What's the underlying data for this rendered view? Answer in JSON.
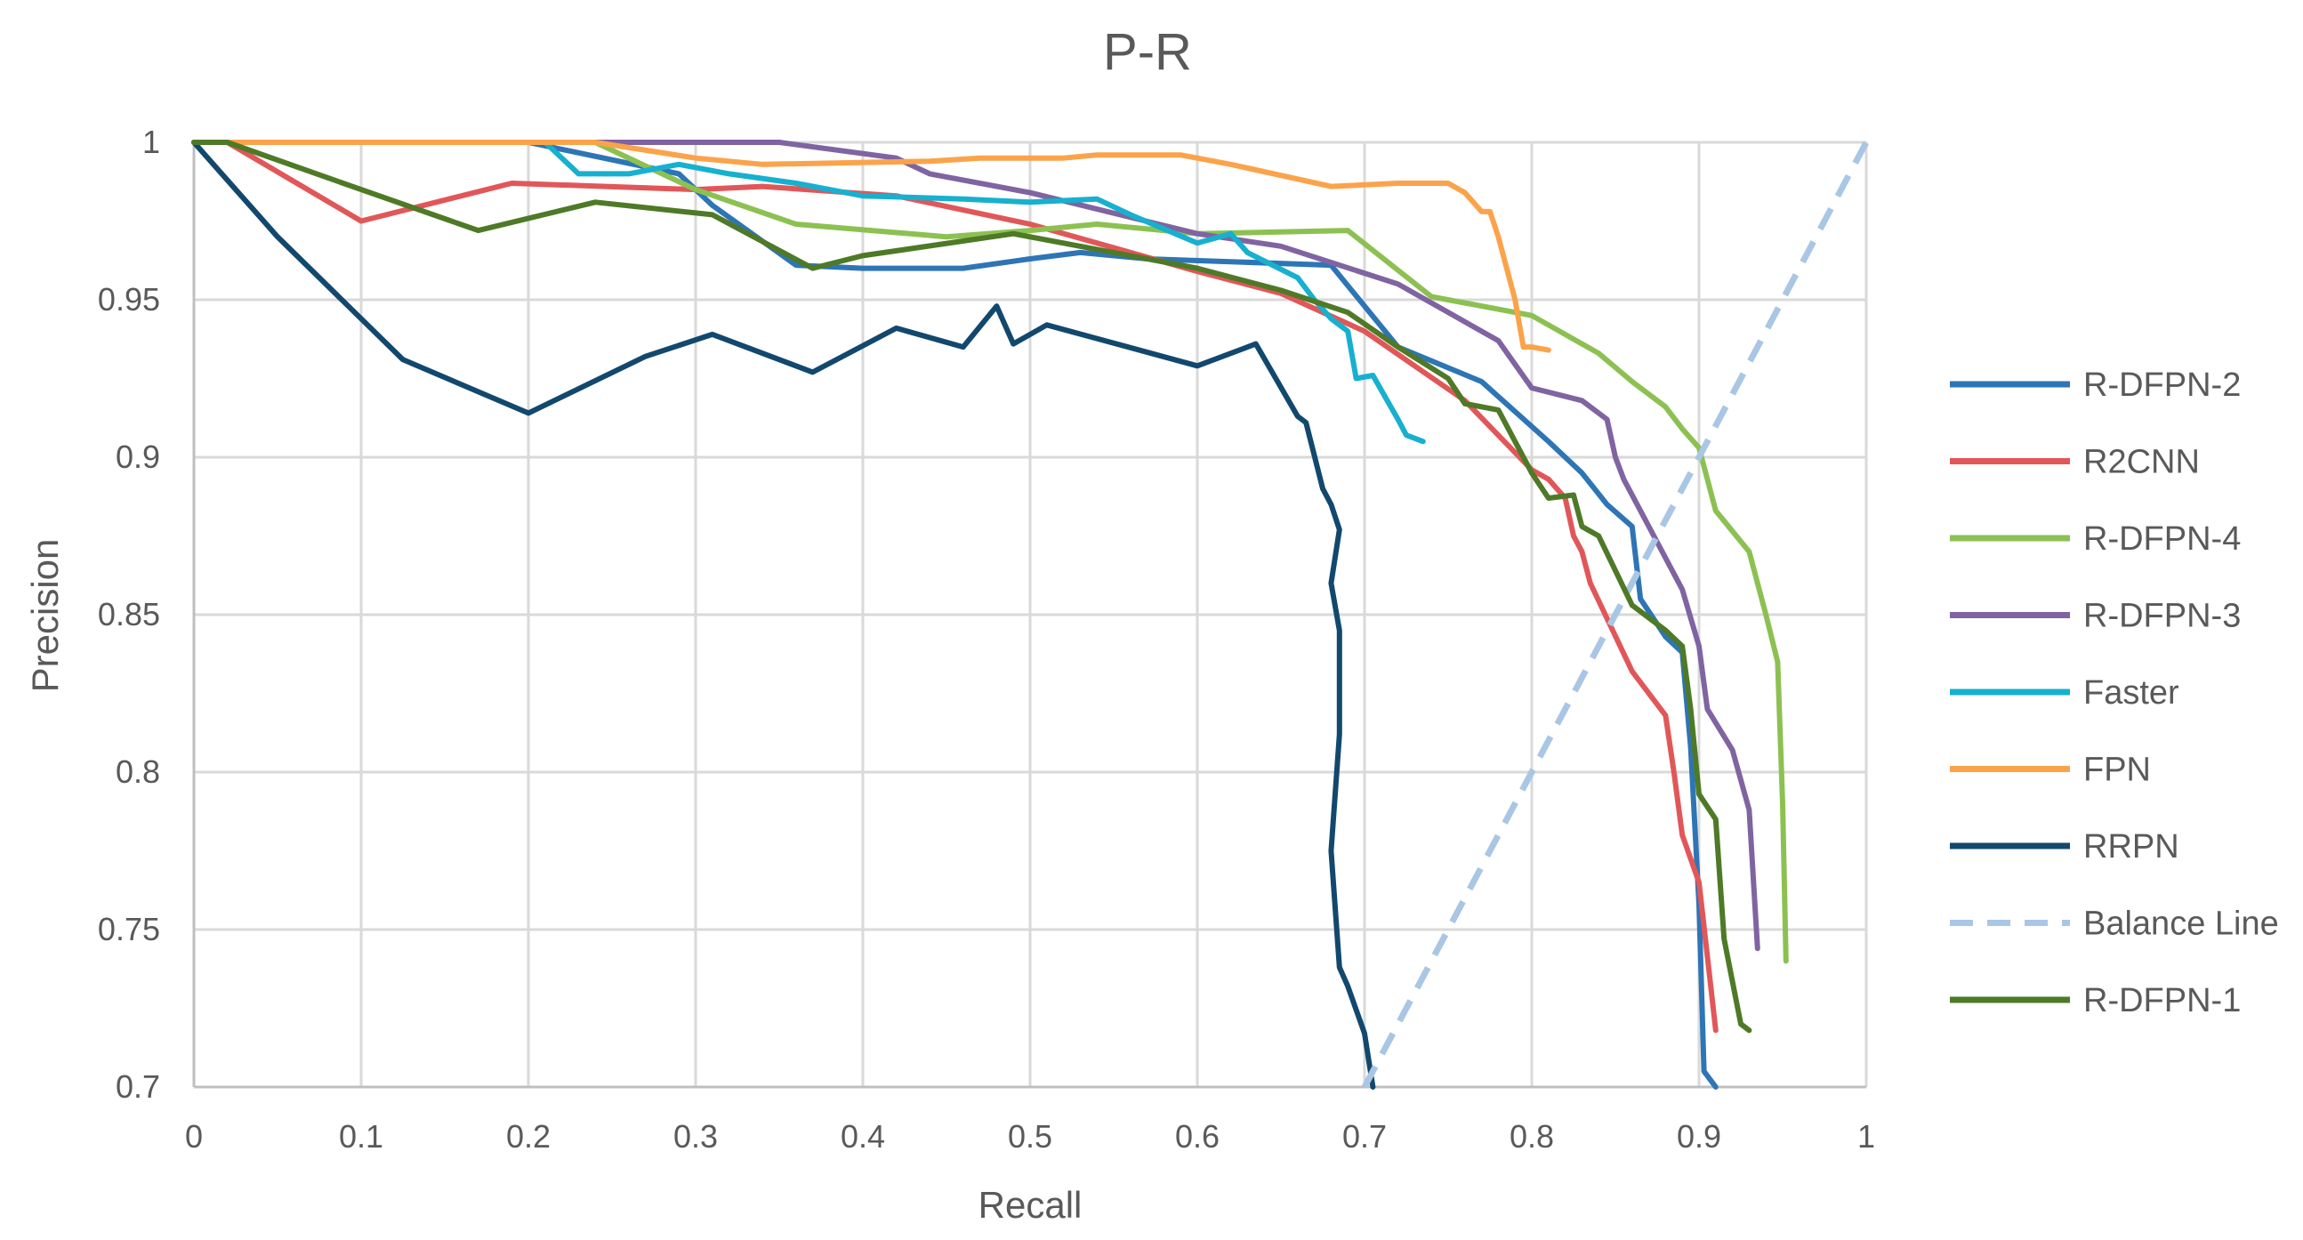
{
  "chart_data": {
    "type": "line",
    "title": "P-R",
    "xlabel": "Recall",
    "ylabel": "Precision",
    "xlim": [
      0,
      1
    ],
    "ylim": [
      0.7,
      1
    ],
    "xticks": [
      0,
      0.1,
      0.2,
      0.3,
      0.4,
      0.5,
      0.6,
      0.7,
      0.8,
      0.9,
      1
    ],
    "xtick_labels": [
      "0",
      "0.1",
      "0.2",
      "0.3",
      "0.4",
      "0.5",
      "0.6",
      "0.7",
      "0.8",
      "0.9",
      "1"
    ],
    "yticks": [
      0.7,
      0.75,
      0.8,
      0.85,
      0.9,
      0.95,
      1
    ],
    "ytick_labels": [
      "0.7",
      "0.75",
      "0.8",
      "0.85",
      "0.9",
      "0.95",
      "1"
    ],
    "grid": true,
    "legend_position": "right",
    "series": [
      {
        "name": "R-DFPN-2",
        "color": "#2E75B6",
        "dash": false,
        "points": [
          [
            0,
            1
          ],
          [
            0.02,
            1
          ],
          [
            0.1,
            1
          ],
          [
            0.2,
            1
          ],
          [
            0.29,
            0.99
          ],
          [
            0.31,
            0.98
          ],
          [
            0.36,
            0.961
          ],
          [
            0.4,
            0.96
          ],
          [
            0.46,
            0.96
          ],
          [
            0.5,
            0.963
          ],
          [
            0.53,
            0.965
          ],
          [
            0.57,
            0.963
          ],
          [
            0.68,
            0.961
          ],
          [
            0.72,
            0.935
          ],
          [
            0.77,
            0.924
          ],
          [
            0.81,
            0.905
          ],
          [
            0.83,
            0.895
          ],
          [
            0.845,
            0.885
          ],
          [
            0.86,
            0.878
          ],
          [
            0.865,
            0.855
          ],
          [
            0.88,
            0.843
          ],
          [
            0.89,
            0.838
          ],
          [
            0.895,
            0.808
          ],
          [
            0.9,
            0.758
          ],
          [
            0.903,
            0.705
          ],
          [
            0.91,
            0.7
          ]
        ]
      },
      {
        "name": "R2CNN",
        "color": "#E15759",
        "dash": false,
        "points": [
          [
            0,
            1
          ],
          [
            0.02,
            1
          ],
          [
            0.1,
            0.975
          ],
          [
            0.19,
            0.987
          ],
          [
            0.3,
            0.985
          ],
          [
            0.34,
            0.986
          ],
          [
            0.42,
            0.983
          ],
          [
            0.5,
            0.974
          ],
          [
            0.6,
            0.959
          ],
          [
            0.65,
            0.952
          ],
          [
            0.7,
            0.94
          ],
          [
            0.76,
            0.918
          ],
          [
            0.8,
            0.896
          ],
          [
            0.81,
            0.893
          ],
          [
            0.82,
            0.887
          ],
          [
            0.825,
            0.875
          ],
          [
            0.83,
            0.87
          ],
          [
            0.835,
            0.86
          ],
          [
            0.86,
            0.832
          ],
          [
            0.88,
            0.818
          ],
          [
            0.885,
            0.8
          ],
          [
            0.89,
            0.78
          ],
          [
            0.9,
            0.765
          ],
          [
            0.91,
            0.718
          ]
        ]
      },
      {
        "name": "R-DFPN-4",
        "color": "#8CC152",
        "dash": false,
        "points": [
          [
            0,
            1
          ],
          [
            0.02,
            1
          ],
          [
            0.1,
            1
          ],
          [
            0.2,
            1
          ],
          [
            0.24,
            1
          ],
          [
            0.3,
            0.985
          ],
          [
            0.36,
            0.974
          ],
          [
            0.45,
            0.97
          ],
          [
            0.5,
            0.972
          ],
          [
            0.54,
            0.974
          ],
          [
            0.6,
            0.971
          ],
          [
            0.69,
            0.972
          ],
          [
            0.74,
            0.951
          ],
          [
            0.8,
            0.945
          ],
          [
            0.84,
            0.933
          ],
          [
            0.86,
            0.924
          ],
          [
            0.88,
            0.916
          ],
          [
            0.89,
            0.909
          ],
          [
            0.9,
            0.903
          ],
          [
            0.91,
            0.883
          ],
          [
            0.93,
            0.87
          ],
          [
            0.94,
            0.85
          ],
          [
            0.947,
            0.835
          ],
          [
            0.95,
            0.79
          ],
          [
            0.952,
            0.74
          ]
        ]
      },
      {
        "name": "R-DFPN-3",
        "color": "#8064A2",
        "dash": false,
        "points": [
          [
            0,
            1
          ],
          [
            0.02,
            1
          ],
          [
            0.1,
            1
          ],
          [
            0.2,
            1
          ],
          [
            0.35,
            1
          ],
          [
            0.42,
            0.995
          ],
          [
            0.44,
            0.99
          ],
          [
            0.5,
            0.984
          ],
          [
            0.6,
            0.971
          ],
          [
            0.65,
            0.967
          ],
          [
            0.72,
            0.955
          ],
          [
            0.78,
            0.937
          ],
          [
            0.8,
            0.922
          ],
          [
            0.83,
            0.918
          ],
          [
            0.845,
            0.912
          ],
          [
            0.85,
            0.9
          ],
          [
            0.855,
            0.893
          ],
          [
            0.87,
            0.878
          ],
          [
            0.89,
            0.858
          ],
          [
            0.9,
            0.84
          ],
          [
            0.905,
            0.82
          ],
          [
            0.92,
            0.807
          ],
          [
            0.93,
            0.788
          ],
          [
            0.935,
            0.744
          ]
        ]
      },
      {
        "name": "Faster",
        "color": "#17B0CF",
        "dash": false,
        "points": [
          [
            0.21,
            1
          ],
          [
            0.23,
            0.99
          ],
          [
            0.26,
            0.99
          ],
          [
            0.29,
            0.993
          ],
          [
            0.32,
            0.99
          ],
          [
            0.36,
            0.987
          ],
          [
            0.4,
            0.983
          ],
          [
            0.46,
            0.982
          ],
          [
            0.5,
            0.981
          ],
          [
            0.54,
            0.982
          ],
          [
            0.56,
            0.977
          ],
          [
            0.6,
            0.968
          ],
          [
            0.62,
            0.971
          ],
          [
            0.63,
            0.965
          ],
          [
            0.66,
            0.957
          ],
          [
            0.67,
            0.95
          ],
          [
            0.68,
            0.944
          ],
          [
            0.69,
            0.94
          ],
          [
            0.695,
            0.925
          ],
          [
            0.705,
            0.926
          ],
          [
            0.72,
            0.912
          ],
          [
            0.725,
            0.907
          ],
          [
            0.735,
            0.905
          ]
        ]
      },
      {
        "name": "FPN",
        "color": "#FBA34B",
        "dash": false,
        "points": [
          [
            0,
            1
          ],
          [
            0.02,
            1
          ],
          [
            0.1,
            1
          ],
          [
            0.2,
            1
          ],
          [
            0.24,
            1
          ],
          [
            0.3,
            0.995
          ],
          [
            0.34,
            0.993
          ],
          [
            0.44,
            0.994
          ],
          [
            0.47,
            0.995
          ],
          [
            0.52,
            0.995
          ],
          [
            0.54,
            0.996
          ],
          [
            0.59,
            0.996
          ],
          [
            0.62,
            0.993
          ],
          [
            0.68,
            0.986
          ],
          [
            0.72,
            0.987
          ],
          [
            0.74,
            0.987
          ],
          [
            0.75,
            0.987
          ],
          [
            0.76,
            0.984
          ],
          [
            0.77,
            0.978
          ],
          [
            0.775,
            0.978
          ],
          [
            0.78,
            0.97
          ],
          [
            0.79,
            0.95
          ],
          [
            0.795,
            0.935
          ],
          [
            0.8,
            0.935
          ],
          [
            0.81,
            0.934
          ]
        ]
      },
      {
        "name": "RRPN",
        "color": "#12486E",
        "dash": false,
        "points": [
          [
            0,
            1
          ],
          [
            0.05,
            0.97
          ],
          [
            0.125,
            0.931
          ],
          [
            0.2,
            0.914
          ],
          [
            0.27,
            0.932
          ],
          [
            0.31,
            0.939
          ],
          [
            0.37,
            0.927
          ],
          [
            0.42,
            0.941
          ],
          [
            0.46,
            0.935
          ],
          [
            0.48,
            0.948
          ],
          [
            0.49,
            0.936
          ],
          [
            0.51,
            0.942
          ],
          [
            0.6,
            0.929
          ],
          [
            0.635,
            0.936
          ],
          [
            0.66,
            0.913
          ],
          [
            0.665,
            0.911
          ],
          [
            0.675,
            0.89
          ],
          [
            0.68,
            0.885
          ],
          [
            0.685,
            0.877
          ],
          [
            0.68,
            0.86
          ],
          [
            0.685,
            0.845
          ],
          [
            0.685,
            0.812
          ],
          [
            0.68,
            0.775
          ],
          [
            0.685,
            0.738
          ],
          [
            0.69,
            0.732
          ],
          [
            0.7,
            0.717
          ],
          [
            0.705,
            0.7
          ]
        ]
      },
      {
        "name": "Balance Line",
        "color": "#A9C6E4",
        "dash": true,
        "points": [
          [
            0.7,
            0.7
          ],
          [
            1,
            1
          ]
        ]
      },
      {
        "name": "R-DFPN-1",
        "color": "#4E7A27",
        "dash": false,
        "points": [
          [
            0,
            1
          ],
          [
            0.02,
            1
          ],
          [
            0.1,
            0.985
          ],
          [
            0.17,
            0.972
          ],
          [
            0.24,
            0.981
          ],
          [
            0.31,
            0.977
          ],
          [
            0.37,
            0.96
          ],
          [
            0.4,
            0.964
          ],
          [
            0.49,
            0.971
          ],
          [
            0.6,
            0.96
          ],
          [
            0.65,
            0.953
          ],
          [
            0.69,
            0.946
          ],
          [
            0.72,
            0.935
          ],
          [
            0.75,
            0.925
          ],
          [
            0.76,
            0.917
          ],
          [
            0.78,
            0.915
          ],
          [
            0.8,
            0.895
          ],
          [
            0.81,
            0.887
          ],
          [
            0.825,
            0.888
          ],
          [
            0.83,
            0.878
          ],
          [
            0.84,
            0.875
          ],
          [
            0.86,
            0.853
          ],
          [
            0.88,
            0.845
          ],
          [
            0.89,
            0.84
          ],
          [
            0.895,
            0.82
          ],
          [
            0.9,
            0.793
          ],
          [
            0.91,
            0.785
          ],
          [
            0.915,
            0.747
          ],
          [
            0.925,
            0.72
          ],
          [
            0.93,
            0.718
          ]
        ]
      }
    ]
  }
}
